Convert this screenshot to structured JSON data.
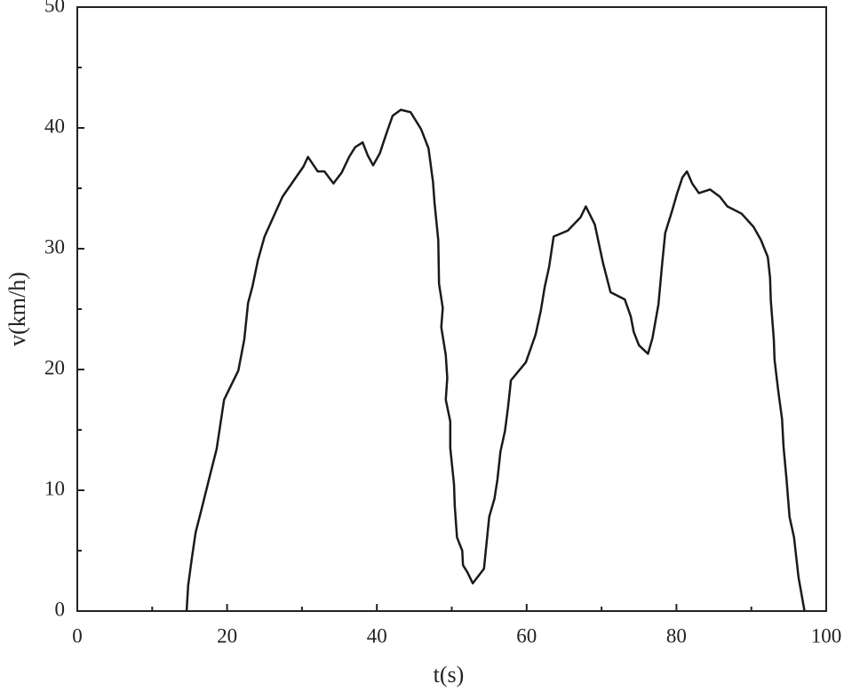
{
  "chart_data": {
    "type": "line",
    "xlabel": "t(s)",
    "ylabel": "v(km/h)",
    "xlim": [
      0,
      100
    ],
    "xticks": [
      0,
      20,
      40,
      60,
      80,
      100
    ],
    "ylim": [
      0,
      50
    ],
    "yticks": [
      0,
      10,
      20,
      30,
      40,
      50
    ],
    "grid": false,
    "x": [
      14.6,
      14.8,
      15.3,
      15.8,
      16.7,
      17.7,
      18.6,
      19.6,
      21.5,
      22.3,
      22.8,
      23.4,
      24.1,
      25.0,
      27.4,
      30.2,
      30.8,
      32.1,
      33.0,
      34.2,
      35.3,
      36.3,
      37.1,
      38.1,
      38.8,
      39.5,
      40.4,
      41.2,
      42.1,
      43.2,
      44.5,
      45.9,
      46.9,
      47.5,
      47.7,
      48.2,
      48.3,
      48.8,
      48.6,
      49.2,
      49.4,
      49.2,
      49.8,
      49.8,
      50.3,
      50.4,
      50.7,
      51.4,
      51.5,
      52.1,
      52.8,
      54.3,
      55.0,
      55.7,
      56.1,
      56.5,
      57.1,
      57.5,
      57.9,
      59.9,
      61.2,
      61.9,
      62.4,
      63.0,
      63.6,
      65.5,
      67.2,
      67.9,
      69.1,
      70.2,
      71.2,
      73.1,
      73.9,
      74.3,
      75.0,
      76.2,
      76.8,
      77.6,
      78.1,
      78.5,
      79.4,
      80.1,
      80.8,
      81.4,
      82.1,
      83.0,
      84.5,
      85.8,
      86.8,
      88.7,
      90.3,
      91.3,
      92.2,
      92.5,
      92.6,
      93.0,
      93.1,
      93.6,
      94.1,
      94.3,
      94.7,
      95.1,
      95.7,
      96.3,
      97.1
    ],
    "series": [
      {
        "color": "#1a1a1a",
        "values": [
          0,
          2.1,
          4.4,
          6.5,
          8.7,
          11.2,
          13.4,
          17.5,
          19.9,
          22.5,
          25.5,
          26.9,
          29,
          31,
          34.3,
          36.8,
          37.6,
          36.4,
          36.4,
          35.4,
          36.3,
          37.6,
          38.4,
          38.8,
          37.7,
          36.9,
          37.9,
          39.4,
          41,
          41.5,
          41.3,
          39.9,
          38.3,
          35.5,
          33.8,
          30.7,
          27.1,
          25.1,
          23.5,
          21.2,
          19.3,
          17.5,
          15.7,
          13.5,
          10.5,
          8.7,
          6.1,
          5,
          3.8,
          3.2,
          2.3,
          3.5,
          7.8,
          9.3,
          10.9,
          13.2,
          14.9,
          16.8,
          19.1,
          20.6,
          22.9,
          24.9,
          26.8,
          28.5,
          31,
          31.5,
          32.6,
          33.5,
          32,
          28.8,
          26.4,
          25.8,
          24.4,
          23.1,
          22,
          21.3,
          22.6,
          25.4,
          28.8,
          31.3,
          33.1,
          34.6,
          35.9,
          36.4,
          35.4,
          34.6,
          34.9,
          34.3,
          33.5,
          32.9,
          31.8,
          30.7,
          29.3,
          27.6,
          25.7,
          22.5,
          20.8,
          18.2,
          15.9,
          13.6,
          10.9,
          7.8,
          6.1,
          2.8,
          0
        ]
      }
    ]
  }
}
